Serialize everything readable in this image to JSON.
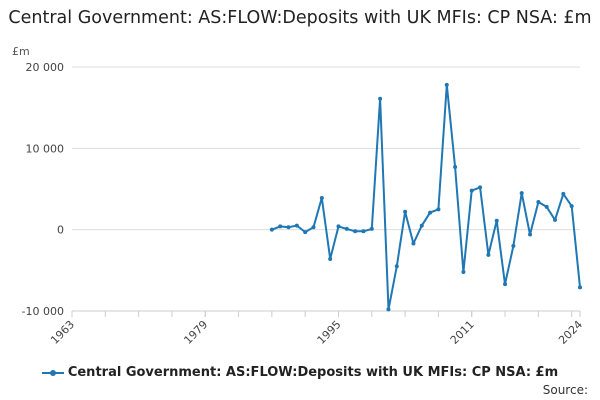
{
  "chart_data": {
    "type": "line",
    "title": "Central Government: AS:FLOW:Deposits with UK MFIs: CP NSA: £m",
    "unit_label": "£m",
    "xlim": [
      1963,
      2024
    ],
    "ylim": [
      -10000,
      20000
    ],
    "x_ticks": [
      "1963",
      "1979",
      "1995",
      "2011",
      "2024"
    ],
    "y_ticks": [
      "20 000",
      "10 000",
      "0",
      "-10 000"
    ],
    "y_tick_values": [
      20000,
      10000,
      0,
      -10000
    ],
    "grid": "horizontal",
    "legend_position": "bottom",
    "series": [
      {
        "name": "Central Government: AS:FLOW:Deposits with UK MFIs: CP NSA: £m",
        "color": "#1f77b4",
        "x": [
          1987,
          1988,
          1989,
          1990,
          1991,
          1992,
          1993,
          1994,
          1995,
          1996,
          1997,
          1998,
          1999,
          2000,
          2001,
          2002,
          2003,
          2004,
          2005,
          2006,
          2007,
          2008,
          2009,
          2010,
          2011,
          2012,
          2013,
          2014,
          2015,
          2016,
          2017,
          2018,
          2019,
          2020,
          2021,
          2022,
          2023,
          2024
        ],
        "values": [
          0,
          400,
          300,
          500,
          -300,
          300,
          3900,
          -3600,
          400,
          100,
          -200,
          -200,
          100,
          16100,
          -9800,
          -4500,
          2200,
          -1700,
          500,
          2100,
          2500,
          17800,
          7700,
          -5200,
          4800,
          5200,
          -3100,
          1100,
          -6700,
          -2000,
          4500,
          -600,
          3400,
          2800,
          1200,
          4400,
          2900,
          -7100
        ]
      }
    ]
  },
  "legend": {
    "label": "Central Government: AS:FLOW:Deposits with UK MFIs: CP NSA: £m"
  },
  "footer": {
    "source_label": "Source:"
  }
}
